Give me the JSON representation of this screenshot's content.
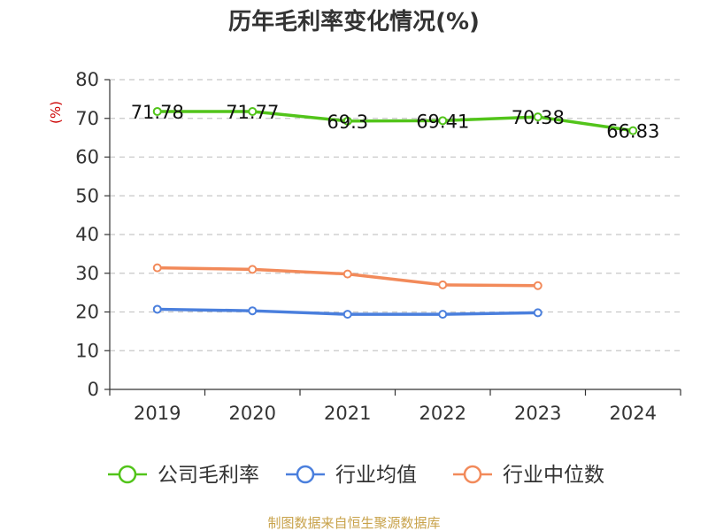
{
  "chart_data": {
    "type": "line",
    "title": "历年毛利率变化情况(%)",
    "ylabel": "(%)",
    "xlabel": "",
    "categories": [
      "2019",
      "2020",
      "2021",
      "2022",
      "2023",
      "2024"
    ],
    "ylim": [
      0,
      80
    ],
    "yticks": [
      0,
      10,
      20,
      30,
      40,
      50,
      60,
      70,
      80
    ],
    "grid": "horizontal-dashed",
    "legend_position": "bottom",
    "series": [
      {
        "name": "公司毛利率",
        "color": "#52c41a",
        "values": [
          71.78,
          71.77,
          69.3,
          69.41,
          70.38,
          66.83
        ],
        "labels": [
          "71.78",
          "71.77",
          "69.3",
          "69.41",
          "70.38",
          "66.83"
        ]
      },
      {
        "name": "行业均值",
        "color": "#4a7fdd",
        "values": [
          20.7,
          20.3,
          19.4,
          19.4,
          19.8,
          null
        ]
      },
      {
        "name": "行业中位数",
        "color": "#f28a5a",
        "values": [
          31.4,
          31.0,
          29.8,
          27.0,
          26.8,
          null
        ]
      }
    ]
  },
  "footer": {
    "source": "制图数据来自恒生聚源数据库"
  }
}
